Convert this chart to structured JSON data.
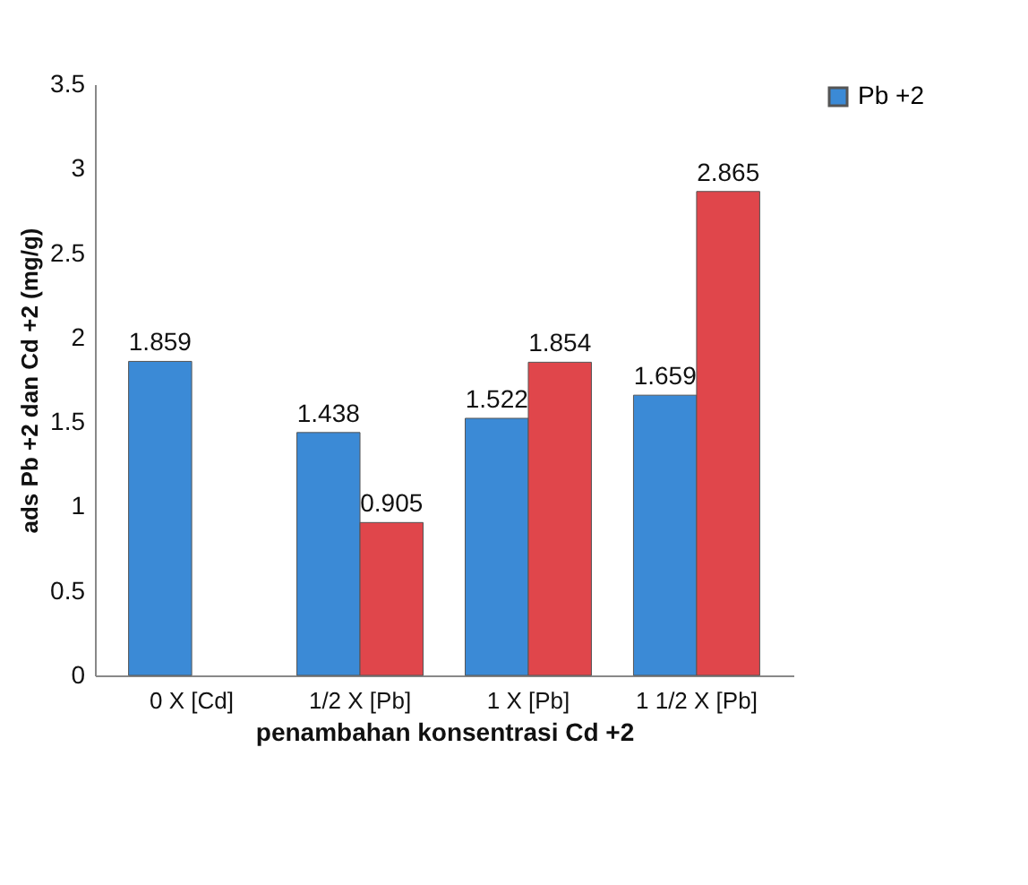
{
  "chart_data": {
    "type": "bar",
    "xlabel": "penambahan konsentrasi Cd +2",
    "ylabel": "ads Pb +2 dan Cd +2 (mg/g)",
    "categories": [
      "0 X [Cd]",
      "1/2 X [Pb]",
      "1 X [Pb]",
      "1 1/2 X [Pb]"
    ],
    "series": [
      {
        "name": "Pb +2",
        "color": "#3b8ad6",
        "values": [
          1.859,
          1.438,
          1.522,
          1.659
        ]
      },
      {
        "color": "#e0464b",
        "values": [
          null,
          0.905,
          1.854,
          2.865
        ]
      }
    ],
    "ylim": [
      0,
      3.5
    ],
    "yticks": [
      0,
      0.5,
      1,
      1.5,
      2,
      2.5,
      3,
      3.5
    ],
    "data_labels": true,
    "legend": "right",
    "grid": false
  }
}
